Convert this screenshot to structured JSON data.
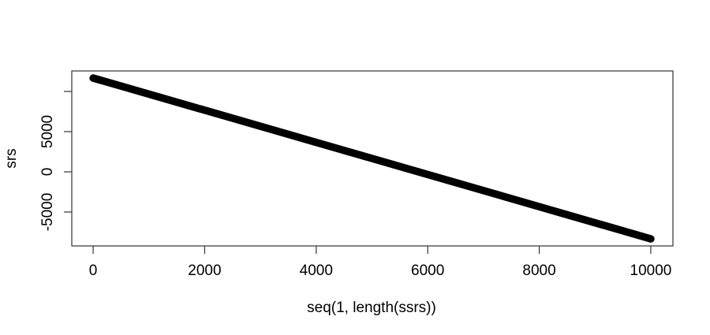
{
  "chart_data": {
    "type": "scatter",
    "title": "",
    "xlabel": "seq(1, length(ssrs))",
    "ylabel": "srs",
    "x_ticks": [
      {
        "value": 0,
        "label": "0"
      },
      {
        "value": 2000,
        "label": "2000"
      },
      {
        "value": 4000,
        "label": "4000"
      },
      {
        "value": 6000,
        "label": "6000"
      },
      {
        "value": 8000,
        "label": "8000"
      },
      {
        "value": 10000,
        "label": "10000"
      }
    ],
    "y_ticks": [
      {
        "value": -5000,
        "label": "-5000"
      },
      {
        "value": 0,
        "label": "0"
      },
      {
        "value": 5000,
        "label": "5000"
      },
      {
        "value": 10000,
        "label": ""
      }
    ],
    "xlim": [
      -383,
      10397
    ],
    "ylim": [
      -9216,
      12550
    ],
    "grid": false,
    "legend": null,
    "series": [
      {
        "name": "srs",
        "style": "dense overplotted points forming one thick straight descending line",
        "color": "#000000",
        "x": [
          1,
          10000
        ],
        "y": [
          11665,
          -8335
        ],
        "n_points": 10000,
        "slope": -2
      }
    ]
  },
  "colors": {
    "background": "#ffffff",
    "axis": "#333333",
    "text": "#000000",
    "series": "#000000"
  }
}
